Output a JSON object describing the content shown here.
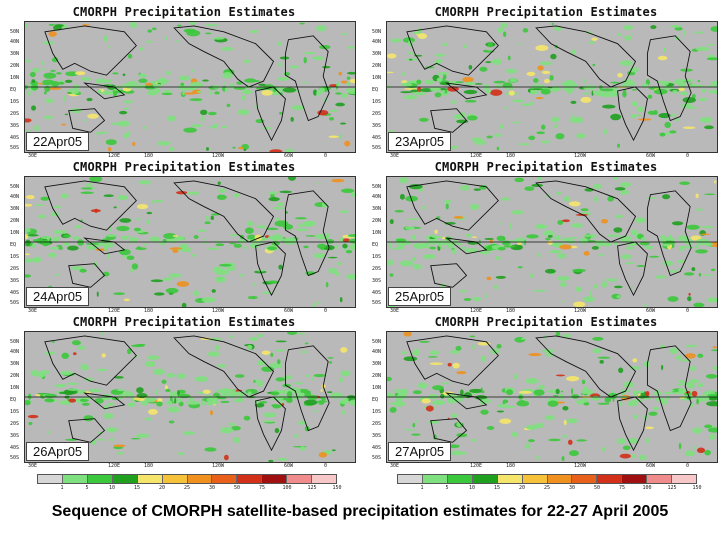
{
  "panel_title": "CMORPH Precipitation Estimates",
  "panels": [
    {
      "date": "22Apr05"
    },
    {
      "date": "23Apr05"
    },
    {
      "date": "24Apr05"
    },
    {
      "date": "25Apr05"
    },
    {
      "date": "26Apr05"
    },
    {
      "date": "27Apr05"
    }
  ],
  "lat_labels": [
    "50N",
    "40N",
    "30N",
    "20N",
    "10N",
    "EQ",
    "10S",
    "20S",
    "30S",
    "40S",
    "50S"
  ],
  "lon_labels": [
    "30E",
    "120E",
    "180",
    "120W",
    "60W",
    "0"
  ],
  "colorbar": {
    "ticks": [
      "1",
      "5",
      "10",
      "15",
      "20",
      "25",
      "30",
      "50",
      "75",
      "100",
      "125",
      "150"
    ],
    "colors": [
      "#d7d7d7",
      "#7fe07f",
      "#3cc83c",
      "#1fa01f",
      "#f5e56a",
      "#f5c23a",
      "#f0901e",
      "#e8601a",
      "#d23018",
      "#a01010",
      "#f08c8c",
      "#f8c8c8"
    ]
  },
  "caption": "Sequence of CMORPH satellite-based precipitation estimates for 22-27 April 2005"
}
